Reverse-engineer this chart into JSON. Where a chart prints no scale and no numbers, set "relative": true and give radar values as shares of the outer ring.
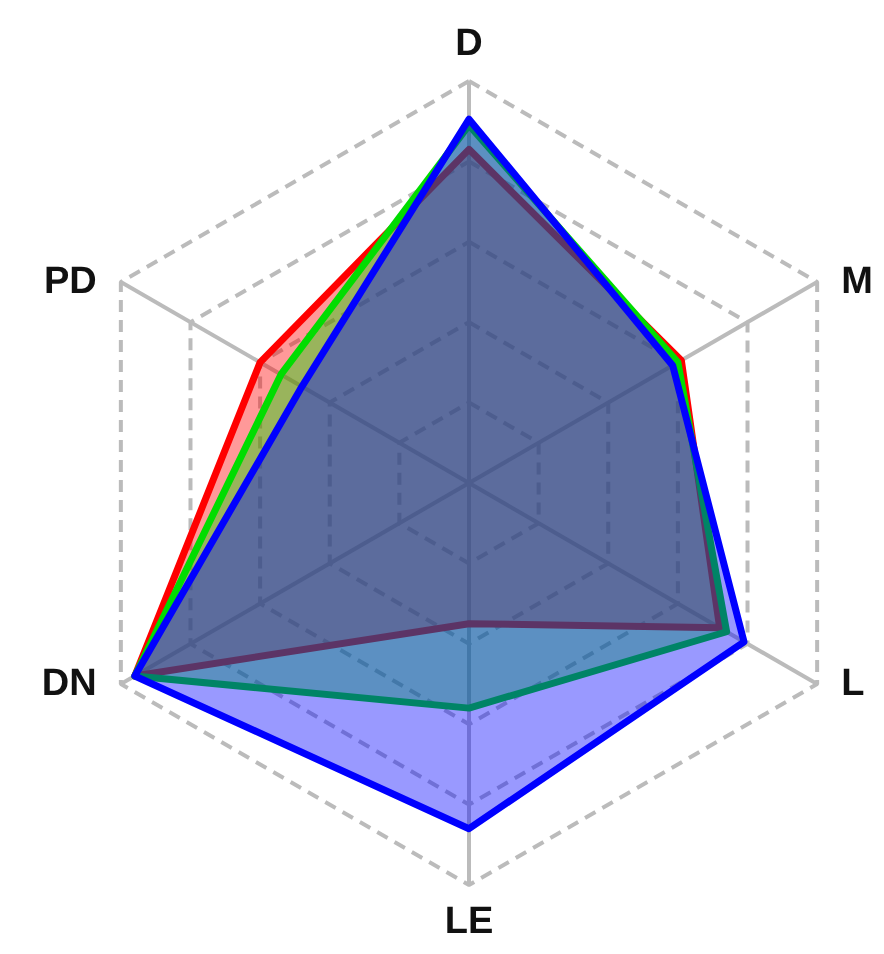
{
  "chart_data": {
    "type": "radar",
    "categories": [
      "D",
      "M",
      "L",
      "LE",
      "DN",
      "PD"
    ],
    "relative": true,
    "grid": true,
    "series": [
      {
        "color": "#ff0000",
        "values": [
          0.83,
          0.61,
          0.72,
          0.35,
          0.96,
          0.6
        ]
      },
      {
        "color": "#00dd00",
        "values": [
          0.89,
          0.6,
          0.74,
          0.56,
          0.96,
          0.54
        ]
      },
      {
        "color": "#0000ff",
        "values": [
          0.905,
          0.585,
          0.79,
          0.86,
          0.96,
          0.48
        ]
      }
    ]
  }
}
